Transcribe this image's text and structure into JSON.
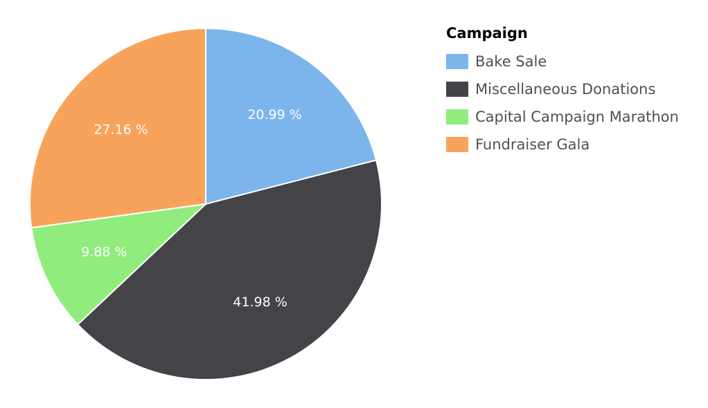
{
  "chart_data": {
    "type": "pie",
    "legend_title": "Campaign",
    "legend_placement": "right",
    "slices": [
      {
        "name": "Bake Sale",
        "value": 20.99,
        "label": "20.99 %",
        "color": "#7cb5ec"
      },
      {
        "name": "Miscellaneous Donations",
        "value": 41.98,
        "label": "41.98 %",
        "color": "#434348"
      },
      {
        "name": "Capital Campaign Marathon",
        "value": 9.88,
        "label": "9.88 %",
        "color": "#90ed7d"
      },
      {
        "name": "Fundraiser Gala",
        "value": 27.16,
        "label": "27.16 %",
        "color": "#f7a35c"
      }
    ]
  }
}
